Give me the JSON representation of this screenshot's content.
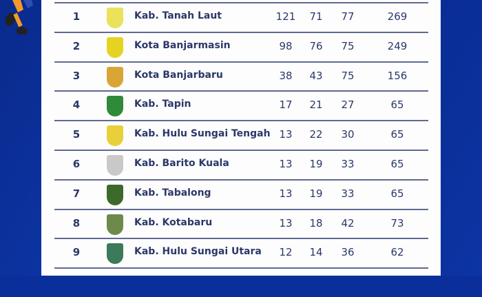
{
  "colors": {
    "background": "#0b2f9a",
    "text": "#2b3868",
    "panel": "#fdfdfd"
  },
  "rows": [
    {
      "rank": "1",
      "name": "Kab. Tanah Laut",
      "gold": "121",
      "silver": "71",
      "bronze": "77",
      "total": "269",
      "logo_color": "#e9e25a"
    },
    {
      "rank": "2",
      "name": "Kota Banjarmasin",
      "gold": "98",
      "silver": "76",
      "bronze": "75",
      "total": "249",
      "logo_color": "#e6d321"
    },
    {
      "rank": "3",
      "name": "Kota Banjarbaru",
      "gold": "38",
      "silver": "43",
      "bronze": "75",
      "total": "156",
      "logo_color": "#d9a537"
    },
    {
      "rank": "4",
      "name": "Kab. Tapin",
      "gold": "17",
      "silver": "21",
      "bronze": "27",
      "total": "65",
      "logo_color": "#2f8a3a"
    },
    {
      "rank": "5",
      "name": "Kab. Hulu Sungai Tengah",
      "gold": "13",
      "silver": "22",
      "bronze": "30",
      "total": "65",
      "logo_color": "#e9cf3a"
    },
    {
      "rank": "6",
      "name": "Kab. Barito Kuala",
      "gold": "13",
      "silver": "19",
      "bronze": "33",
      "total": "65",
      "logo_color": "#c9c9c9"
    },
    {
      "rank": "7",
      "name": "Kab. Tabalong",
      "gold": "13",
      "silver": "19",
      "bronze": "33",
      "total": "65",
      "logo_color": "#3c6a2a"
    },
    {
      "rank": "8",
      "name": "Kab. Kotabaru",
      "gold": "13",
      "silver": "18",
      "bronze": "42",
      "total": "73",
      "logo_color": "#6d8a4a"
    },
    {
      "rank": "9",
      "name": "Kab. Hulu Sungai Utara",
      "gold": "12",
      "silver": "14",
      "bronze": "36",
      "total": "62",
      "logo_color": "#3b7a5a"
    }
  ]
}
